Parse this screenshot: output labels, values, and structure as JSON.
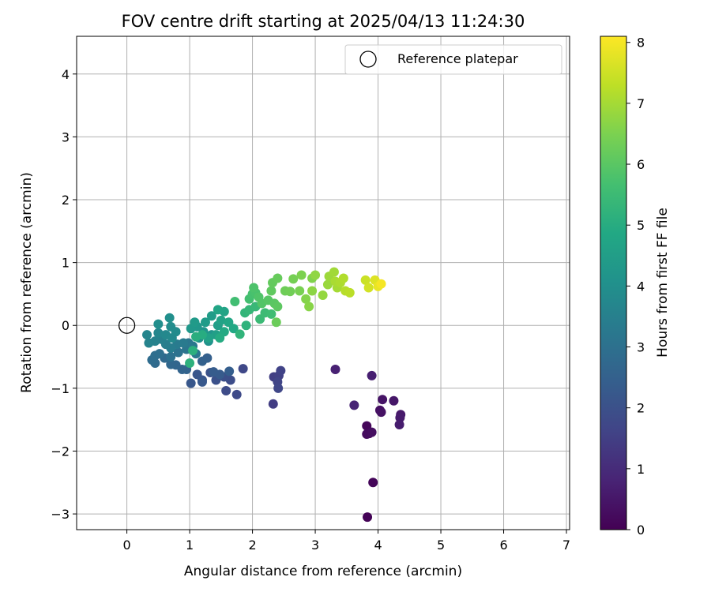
{
  "chart_data": {
    "type": "scatter",
    "title": "FOV centre drift starting at 2025/04/13 11:24:30",
    "xlabel": "Angular distance from reference (arcmin)",
    "ylabel": "Rotation from reference (arcmin)",
    "xlim": [
      -0.8,
      7.05
    ],
    "ylim": [
      -3.25,
      4.6
    ],
    "xticks": [
      0,
      1,
      2,
      3,
      4,
      5,
      6,
      7
    ],
    "yticks": [
      -3,
      -2,
      -1,
      0,
      1,
      2,
      3,
      4
    ],
    "grid": true,
    "legend": {
      "placement": "top-right",
      "entries": [
        "Reference platepar"
      ]
    },
    "reference_point": {
      "x": 0,
      "y": 0,
      "label": "Reference platepar"
    },
    "colorbar": {
      "label": "Hours from first FF file",
      "colormap": "viridis",
      "range": [
        0,
        8.1
      ],
      "ticks": [
        0,
        1,
        2,
        3,
        4,
        5,
        6,
        7,
        8
      ]
    },
    "color_dimension": "Hours from first FF file",
    "points": [
      [
        3.83,
        -3.05,
        0.05
      ],
      [
        3.92,
        -2.5,
        0.1
      ],
      [
        3.82,
        -1.6,
        0.15
      ],
      [
        3.86,
        -1.72,
        0.2
      ],
      [
        3.82,
        -1.73,
        0.25
      ],
      [
        3.9,
        -1.7,
        0.3
      ],
      [
        4.03,
        -1.35,
        0.35
      ],
      [
        4.05,
        -1.38,
        0.4
      ],
      [
        4.07,
        -1.18,
        0.45
      ],
      [
        4.25,
        -1.2,
        0.5
      ],
      [
        4.36,
        -1.42,
        0.55
      ],
      [
        4.35,
        -1.47,
        0.6
      ],
      [
        4.34,
        -1.58,
        0.65
      ],
      [
        3.9,
        -0.8,
        0.7
      ],
      [
        3.32,
        -0.7,
        0.75
      ],
      [
        3.62,
        -1.27,
        0.8
      ],
      [
        2.33,
        -1.25,
        1.45
      ],
      [
        2.34,
        -0.82,
        1.5
      ],
      [
        2.42,
        -0.8,
        1.55
      ],
      [
        2.45,
        -0.72,
        1.6
      ],
      [
        2.4,
        -0.9,
        1.65
      ],
      [
        2.41,
        -1.0,
        1.7
      ],
      [
        1.85,
        -0.69,
        1.75
      ],
      [
        1.75,
        -1.1,
        1.8
      ],
      [
        1.58,
        -1.04,
        1.85
      ],
      [
        1.65,
        -0.87,
        1.9
      ],
      [
        1.55,
        -0.82,
        1.95
      ],
      [
        1.42,
        -0.87,
        2.0
      ],
      [
        1.33,
        -0.75,
        2.05
      ],
      [
        1.2,
        -0.87,
        2.1
      ],
      [
        1.12,
        -0.78,
        2.15
      ],
      [
        1.02,
        -0.92,
        2.2
      ],
      [
        1.2,
        -0.9,
        2.25
      ],
      [
        1.48,
        -0.78,
        2.3
      ],
      [
        1.38,
        -0.74,
        2.35
      ],
      [
        1.63,
        -0.73,
        2.4
      ],
      [
        1.28,
        -0.52,
        2.45
      ],
      [
        1.2,
        -0.57,
        2.5
      ],
      [
        0.95,
        -0.7,
        2.55
      ],
      [
        0.88,
        -0.7,
        2.6
      ],
      [
        0.78,
        -0.63,
        2.65
      ],
      [
        0.7,
        -0.62,
        2.7
      ],
      [
        0.6,
        -0.52,
        2.75
      ],
      [
        0.45,
        -0.6,
        2.8
      ],
      [
        0.4,
        -0.55,
        2.85
      ],
      [
        0.45,
        -0.48,
        2.9
      ],
      [
        0.52,
        -0.45,
        2.95
      ],
      [
        0.7,
        -0.5,
        3.0
      ],
      [
        0.82,
        -0.43,
        3.05
      ],
      [
        0.95,
        -0.38,
        3.1
      ],
      [
        0.98,
        -0.28,
        3.15
      ],
      [
        1.05,
        -0.33,
        3.2
      ],
      [
        1.1,
        -0.45,
        3.25
      ],
      [
        0.9,
        -0.28,
        3.3
      ],
      [
        0.8,
        -0.3,
        3.35
      ],
      [
        0.7,
        -0.36,
        3.4
      ],
      [
        0.62,
        -0.3,
        3.45
      ],
      [
        0.55,
        -0.22,
        3.5
      ],
      [
        0.45,
        -0.25,
        3.55
      ],
      [
        0.35,
        -0.28,
        3.6
      ],
      [
        0.32,
        -0.15,
        3.65
      ],
      [
        0.5,
        -0.12,
        3.7
      ],
      [
        0.62,
        -0.15,
        3.75
      ],
      [
        0.72,
        -0.2,
        3.8
      ],
      [
        0.78,
        -0.1,
        3.85
      ],
      [
        0.7,
        -0.02,
        3.9
      ],
      [
        0.5,
        0.02,
        3.95
      ],
      [
        0.68,
        0.12,
        4.0
      ],
      [
        1.15,
        -0.2,
        4.05
      ],
      [
        1.3,
        -0.25,
        4.1
      ],
      [
        1.35,
        -0.15,
        4.15
      ],
      [
        1.22,
        -0.1,
        4.2
      ],
      [
        1.12,
        -0.02,
        4.25
      ],
      [
        1.02,
        -0.05,
        4.3
      ],
      [
        1.08,
        0.05,
        4.35
      ],
      [
        1.25,
        0.05,
        4.4
      ],
      [
        1.35,
        0.15,
        4.45
      ],
      [
        1.45,
        0.0,
        4.5
      ],
      [
        1.42,
        -0.15,
        4.55
      ],
      [
        1.3,
        -0.2,
        4.6
      ],
      [
        1.5,
        0.08,
        4.65
      ],
      [
        1.55,
        0.22,
        4.7
      ],
      [
        1.45,
        0.25,
        4.75
      ],
      [
        1.62,
        0.05,
        4.8
      ],
      [
        1.7,
        -0.05,
        4.85
      ],
      [
        1.55,
        -0.1,
        4.9
      ],
      [
        1.48,
        -0.2,
        4.95
      ],
      [
        1.2,
        -0.15,
        5.0
      ],
      [
        1.1,
        -0.18,
        5.05
      ],
      [
        1.05,
        -0.4,
        5.1
      ],
      [
        1.0,
        -0.6,
        5.15
      ],
      [
        1.9,
        0.0,
        5.2
      ],
      [
        1.8,
        -0.14,
        5.25
      ],
      [
        1.88,
        0.2,
        5.3
      ],
      [
        1.95,
        0.25,
        5.35
      ],
      [
        2.05,
        0.3,
        5.4
      ],
      [
        2.12,
        0.1,
        5.45
      ],
      [
        2.2,
        0.2,
        5.5
      ],
      [
        2.3,
        0.18,
        5.55
      ],
      [
        1.72,
        0.38,
        5.6
      ],
      [
        1.95,
        0.42,
        5.65
      ],
      [
        2.0,
        0.5,
        5.7
      ],
      [
        2.05,
        0.52,
        5.75
      ],
      [
        2.02,
        0.6,
        5.8
      ],
      [
        2.1,
        0.45,
        5.85
      ],
      [
        2.15,
        0.35,
        5.9
      ],
      [
        2.25,
        0.4,
        5.95
      ],
      [
        2.35,
        0.35,
        6.0
      ],
      [
        2.4,
        0.3,
        6.05
      ],
      [
        2.3,
        0.55,
        6.1
      ],
      [
        2.32,
        0.68,
        6.15
      ],
      [
        2.4,
        0.75,
        6.2
      ],
      [
        2.38,
        0.05,
        6.25
      ],
      [
        2.52,
        0.55,
        6.3
      ],
      [
        2.6,
        0.54,
        6.35
      ],
      [
        2.65,
        0.74,
        6.4
      ],
      [
        2.75,
        0.55,
        6.45
      ],
      [
        2.78,
        0.8,
        6.5
      ],
      [
        2.95,
        0.75,
        6.55
      ],
      [
        2.85,
        0.42,
        6.6
      ],
      [
        2.9,
        0.3,
        6.65
      ],
      [
        2.95,
        0.55,
        6.7
      ],
      [
        3.0,
        0.8,
        6.75
      ],
      [
        3.12,
        0.48,
        6.8
      ],
      [
        3.2,
        0.65,
        6.85
      ],
      [
        3.22,
        0.78,
        6.9
      ],
      [
        3.3,
        0.85,
        6.95
      ],
      [
        3.35,
        0.6,
        7.0
      ],
      [
        3.32,
        0.7,
        7.05
      ],
      [
        3.4,
        0.68,
        7.1
      ],
      [
        3.45,
        0.75,
        7.15
      ],
      [
        3.48,
        0.55,
        7.2
      ],
      [
        3.55,
        0.52,
        7.25
      ],
      [
        3.8,
        0.72,
        7.45
      ],
      [
        3.85,
        0.6,
        7.55
      ],
      [
        3.95,
        0.72,
        7.7
      ],
      [
        4.0,
        0.62,
        7.85
      ],
      [
        4.05,
        0.66,
        8.0
      ]
    ]
  }
}
